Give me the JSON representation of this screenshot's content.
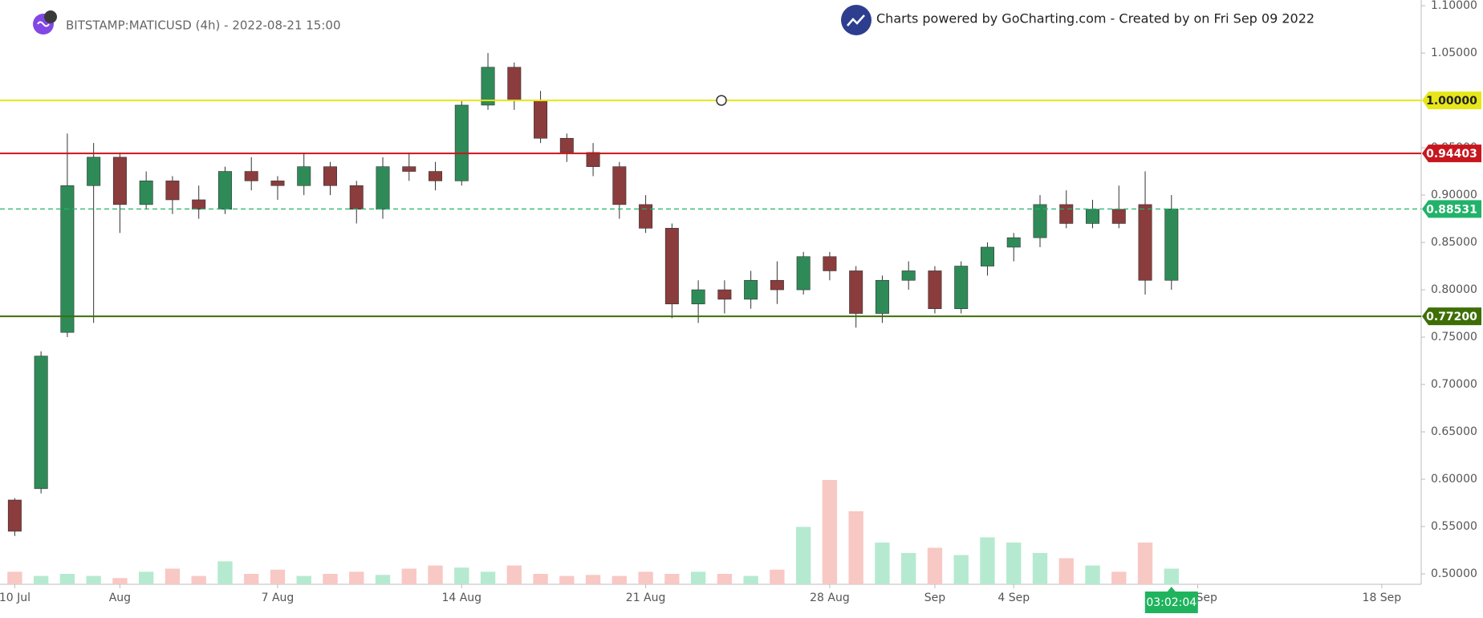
{
  "header": {
    "symbol": "BITSTAMP:MATICUSD (4h) - 2022-08-21 15:00",
    "watermark": "Charts powered by GoCharting.com - Created by  on Fri Sep 09 2022"
  },
  "chart_data": {
    "type": "candlestick",
    "categories": [
      "2022-07-10",
      "2022-07-17",
      "2022-07-24",
      "2022-07-29",
      "2022-08-01",
      "2022-08-02",
      "2022-08-03",
      "2022-08-04",
      "2022-08-05",
      "2022-08-06",
      "2022-08-07",
      "2022-08-08",
      "2022-08-09",
      "2022-08-10",
      "2022-08-11",
      "2022-08-12",
      "2022-08-13",
      "2022-08-14",
      "2022-08-15",
      "2022-08-16",
      "2022-08-17",
      "2022-08-18",
      "2022-08-19",
      "2022-08-20",
      "2022-08-21",
      "2022-08-22",
      "2022-08-23",
      "2022-08-24",
      "2022-08-25",
      "2022-08-26",
      "2022-08-27",
      "2022-08-28",
      "2022-08-29",
      "2022-08-30",
      "2022-08-31",
      "2022-09-01",
      "2022-09-02",
      "2022-09-03",
      "2022-09-04",
      "2022-09-05",
      "2022-09-06",
      "2022-09-07",
      "2022-09-08",
      "2022-09-09",
      "2022-09-10",
      "2022-09-11",
      "2022-09-12",
      "2022-09-13",
      "2022-09-14",
      "2022-09-15",
      "2022-09-16",
      "2022-09-17",
      "2022-09-18",
      "2022-09-19"
    ],
    "open": [
      0.578,
      0.59,
      0.755,
      0.91,
      0.94,
      0.89,
      0.915,
      0.895,
      0.885,
      0.925,
      0.915,
      0.91,
      0.93,
      0.91,
      0.885,
      0.93,
      0.925,
      0.915,
      0.995,
      1.035,
      1.0,
      0.96,
      0.945,
      0.93,
      0.89,
      0.865,
      0.785,
      0.8,
      0.79,
      0.81,
      0.8,
      0.835,
      0.82,
      0.775,
      0.81,
      0.82,
      0.78,
      0.825,
      0.845,
      0.855,
      0.89,
      0.87,
      0.885,
      0.89,
      0.81,
      null,
      null,
      null,
      null,
      null,
      null,
      null,
      null,
      null
    ],
    "high": [
      0.58,
      0.735,
      0.965,
      0.955,
      0.945,
      0.925,
      0.92,
      0.91,
      0.93,
      0.94,
      0.92,
      0.945,
      0.935,
      0.915,
      0.94,
      0.945,
      0.935,
      1.0,
      1.05,
      1.04,
      1.01,
      0.965,
      0.955,
      0.935,
      0.9,
      0.87,
      0.81,
      0.81,
      0.82,
      0.83,
      0.84,
      0.84,
      0.825,
      0.815,
      0.83,
      0.825,
      0.83,
      0.85,
      0.86,
      0.9,
      0.905,
      0.895,
      0.91,
      0.925,
      0.9,
      null,
      null,
      null,
      null,
      null,
      null,
      null,
      null,
      null
    ],
    "low": [
      0.54,
      0.585,
      0.75,
      0.765,
      0.86,
      0.885,
      0.88,
      0.875,
      0.88,
      0.905,
      0.895,
      0.9,
      0.9,
      0.87,
      0.875,
      0.915,
      0.905,
      0.91,
      0.99,
      0.99,
      0.955,
      0.935,
      0.92,
      0.875,
      0.86,
      0.77,
      0.765,
      0.775,
      0.78,
      0.785,
      0.795,
      0.81,
      0.76,
      0.765,
      0.8,
      0.775,
      0.775,
      0.815,
      0.83,
      0.845,
      0.865,
      0.865,
      0.865,
      0.795,
      0.8,
      null,
      null,
      null,
      null,
      null,
      null,
      null,
      null,
      null
    ],
    "close": [
      0.545,
      0.73,
      0.91,
      0.94,
      0.89,
      0.915,
      0.895,
      0.885,
      0.925,
      0.915,
      0.91,
      0.93,
      0.91,
      0.885,
      0.93,
      0.925,
      0.915,
      0.995,
      1.035,
      1.0,
      0.96,
      0.945,
      0.93,
      0.89,
      0.865,
      0.785,
      0.8,
      0.79,
      0.81,
      0.8,
      0.835,
      0.82,
      0.775,
      0.81,
      0.82,
      0.78,
      0.825,
      0.845,
      0.855,
      0.89,
      0.87,
      0.885,
      0.87,
      0.81,
      0.88531,
      null,
      null,
      null,
      null,
      null,
      null,
      null,
      null,
      null
    ],
    "volume": [
      12,
      8,
      10,
      8,
      6,
      12,
      15,
      8,
      22,
      10,
      14,
      8,
      10,
      12,
      9,
      15,
      18,
      16,
      12,
      18,
      10,
      8,
      9,
      8,
      12,
      10,
      12,
      10,
      8,
      14,
      55,
      100,
      70,
      40,
      30,
      35,
      28,
      45,
      40,
      30,
      25,
      18,
      12,
      40,
      15,
      null,
      null,
      null,
      null,
      null,
      null,
      null,
      null,
      null
    ],
    "vlim": [
      0,
      100
    ],
    "up_color": "#2e8b57",
    "down_color": "#8b3c3c",
    "volume_up_color": "#b5ead0",
    "volume_down_color": "#f8c8c4",
    "ylim": [
      0.489,
      1.106
    ],
    "yticks": [
      {
        "value": 0.5,
        "label": "0.50000"
      },
      {
        "value": 0.55,
        "label": "0.55000"
      },
      {
        "value": 0.6,
        "label": "0.60000"
      },
      {
        "value": 0.65,
        "label": "0.65000"
      },
      {
        "value": 0.7,
        "label": "0.70000"
      },
      {
        "value": 0.75,
        "label": "0.75000"
      },
      {
        "value": 0.8,
        "label": "0.80000"
      },
      {
        "value": 0.85,
        "label": "0.85000"
      },
      {
        "value": 0.9,
        "label": "0.90000"
      },
      {
        "value": 0.95,
        "label": "0.95000"
      },
      {
        "value": 1.05,
        "label": "1.05000"
      },
      {
        "value": 1.1,
        "label": "1.10000"
      }
    ],
    "xticks": [
      {
        "value": "2022-07-10",
        "label": "10 Jul"
      },
      {
        "value": "2022-08-01",
        "label": "Aug"
      },
      {
        "value": "2022-08-07",
        "label": "7 Aug"
      },
      {
        "value": "2022-08-14",
        "label": "14 Aug"
      },
      {
        "value": "2022-08-21",
        "label": "21 Aug"
      },
      {
        "value": "2022-08-28",
        "label": "28 Aug"
      },
      {
        "value": "2022-09-01",
        "label": "Sep"
      },
      {
        "value": "2022-09-04",
        "label": "4 Sep"
      },
      {
        "value": "2022-09-11",
        "label": "11 Sep"
      },
      {
        "value": "2022-09-18",
        "label": "18 Sep"
      }
    ],
    "grid": false,
    "lines": [
      {
        "value": 1.0,
        "label": "1.00000",
        "color": "#e6e61a",
        "text_color": "#222222",
        "style": "solid"
      },
      {
        "value": 0.94403,
        "label": "0.94403",
        "color": "#c8161e",
        "text_color": "#ffffff",
        "style": "solid"
      },
      {
        "value": 0.88531,
        "label": "0.88531",
        "color": "#22b36a",
        "text_color": "#ffffff",
        "style": "dashed"
      },
      {
        "value": 0.772,
        "label": "0.77200",
        "color": "#3f6e07",
        "text_color": "#ffffff",
        "style": "solid"
      }
    ],
    "countdown": "03:02:04",
    "countdown_color": "#1fb35e"
  }
}
